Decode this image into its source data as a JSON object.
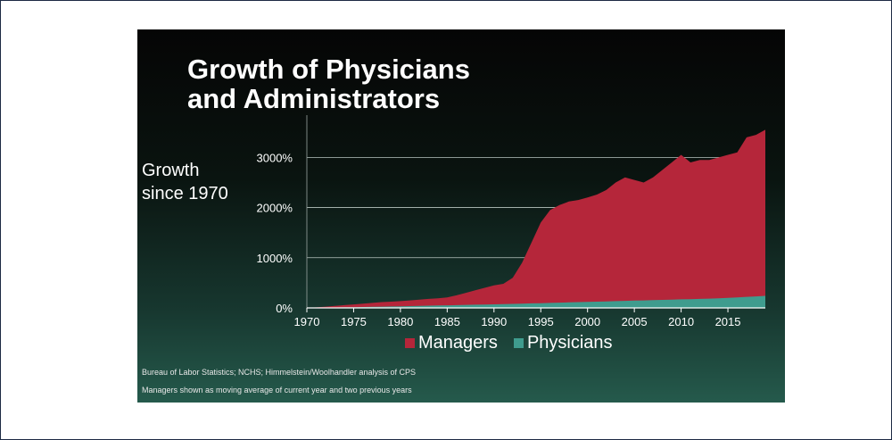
{
  "slide": {
    "title_line1": "Growth of Physicians",
    "title_line2": "and Administrators",
    "ylabel_line1": "Growth",
    "ylabel_line2": "since 1970",
    "source_note": "Bureau of Labor Statistics; NCHS; Himmelstein/Woolhandler analysis of CPS",
    "method_note": "Managers shown as moving average of current year and two previous years"
  },
  "chart_data": {
    "type": "area",
    "title": "Growth of Physicians and Administrators",
    "ylabel": "Growth since 1970",
    "xlabel": "",
    "xlim": [
      1970,
      2019
    ],
    "ylim": [
      0,
      3700
    ],
    "yticks": [
      0,
      1000,
      2000,
      3000
    ],
    "ytick_labels": [
      "0%",
      "1000%",
      "2000%",
      "3000%"
    ],
    "xticks": [
      1970,
      1975,
      1980,
      1985,
      1990,
      1995,
      2000,
      2005,
      2010,
      2015
    ],
    "grid": true,
    "stacked": false,
    "legend_position": "bottom",
    "x": [
      1970,
      1971,
      1972,
      1973,
      1974,
      1975,
      1976,
      1977,
      1978,
      1979,
      1980,
      1981,
      1982,
      1983,
      1984,
      1985,
      1986,
      1987,
      1988,
      1989,
      1990,
      1991,
      1992,
      1993,
      1994,
      1995,
      1996,
      1997,
      1998,
      1999,
      2000,
      2001,
      2002,
      2003,
      2004,
      2005,
      2006,
      2007,
      2008,
      2009,
      2010,
      2011,
      2012,
      2013,
      2014,
      2015,
      2016,
      2017,
      2018,
      2019
    ],
    "series": [
      {
        "name": "Managers",
        "color": "#b5263a",
        "values": [
          0,
          10,
          25,
          40,
          55,
          70,
          85,
          100,
          115,
          125,
          135,
          150,
          165,
          180,
          190,
          210,
          250,
          300,
          350,
          400,
          450,
          480,
          600,
          900,
          1300,
          1700,
          1950,
          2050,
          2120,
          2150,
          2200,
          2260,
          2350,
          2500,
          2600,
          2550,
          2500,
          2600,
          2750,
          2900,
          3050,
          2900,
          2950,
          2950,
          3000,
          3050,
          3100,
          3400,
          3450,
          3550
        ]
      },
      {
        "name": "Physicians",
        "color": "#3f9c8e",
        "values": [
          0,
          3,
          6,
          9,
          12,
          15,
          18,
          21,
          25,
          28,
          32,
          36,
          40,
          44,
          48,
          52,
          56,
          60,
          64,
          68,
          72,
          76,
          80,
          85,
          90,
          95,
          100,
          105,
          110,
          115,
          120,
          125,
          130,
          135,
          140,
          145,
          150,
          155,
          160,
          165,
          170,
          175,
          180,
          185,
          190,
          200,
          210,
          220,
          230,
          240
        ]
      }
    ]
  }
}
